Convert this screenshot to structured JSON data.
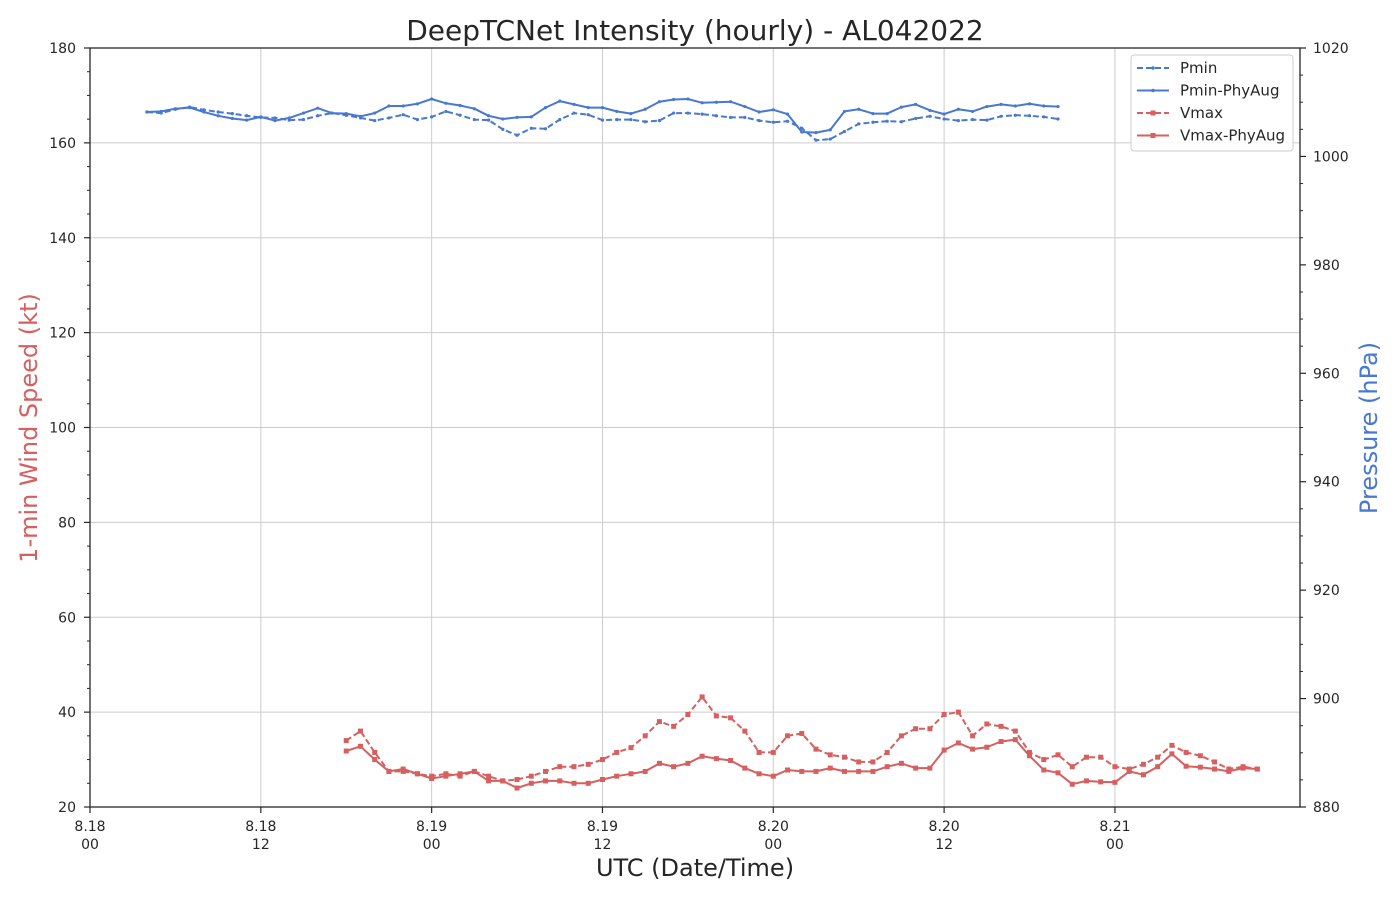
{
  "chart_data": {
    "type": "line",
    "title": "DeepTCNet Intensity (hourly) - AL042022",
    "xlabel": "UTC (Date/Time)",
    "ylabel_left": "1-min Wind Speed (kt)",
    "ylabel_right": "Pressure (hPa)",
    "x_unit": "hours since first tick (8.18 00 UTC)",
    "xlim": [
      0,
      85
    ],
    "ylim_left": [
      20,
      180
    ],
    "ylim_right": [
      880,
      1020
    ],
    "yticks_left": [
      20,
      40,
      60,
      80,
      100,
      120,
      140,
      160,
      180
    ],
    "yticks_right": [
      880,
      900,
      920,
      940,
      960,
      980,
      1000,
      1020
    ],
    "xticks": [
      {
        "hour": 0,
        "date": "8.18",
        "time": "00"
      },
      {
        "hour": 12,
        "date": "8.18",
        "time": "12"
      },
      {
        "hour": 24,
        "date": "8.19",
        "time": "00"
      },
      {
        "hour": 36,
        "date": "8.19",
        "time": "12"
      },
      {
        "hour": 48,
        "date": "8.20",
        "time": "00"
      },
      {
        "hour": 60,
        "date": "8.20",
        "time": "12"
      },
      {
        "hour": 72,
        "date": "8.21",
        "time": "00"
      }
    ],
    "grid": true,
    "legend_position": "top-right",
    "colors": {
      "vmax": "#d65f5f",
      "pmin": "#4878d0"
    },
    "series": [
      {
        "name": "Pmin",
        "axis": "right",
        "style": "dashed",
        "color": "#4878d0",
        "x_start": 4,
        "values": [
          1008.2,
          1008.0,
          1008.7,
          1009.1,
          1008.6,
          1008.2,
          1007.9,
          1007.5,
          1007.2,
          1007.1,
          1006.7,
          1006.8,
          1007.5,
          1008.0,
          1007.6,
          1007.1,
          1006.6,
          1007.1,
          1007.7,
          1006.8,
          1007.3,
          1008.3,
          1007.6,
          1006.8,
          1006.7,
          1005.0,
          1003.9,
          1005.2,
          1005.1,
          1006.8,
          1008.0,
          1007.7,
          1006.7,
          1006.8,
          1006.8,
          1006.4,
          1006.6,
          1008.0,
          1008.0,
          1007.8,
          1007.5,
          1007.2,
          1007.2,
          1006.6,
          1006.3,
          1006.5,
          1005.2,
          1003.0,
          1003.2,
          1004.6,
          1006.0,
          1006.3,
          1006.5,
          1006.4,
          1007.0,
          1007.4,
          1006.9,
          1006.6,
          1006.8,
          1006.7,
          1007.4,
          1007.6,
          1007.5,
          1007.3,
          1006.9
        ]
      },
      {
        "name": "Pmin-PhyAug",
        "axis": "right",
        "style": "solid",
        "color": "#4878d0",
        "x_start": 4,
        "values": [
          1008.2,
          1008.3,
          1008.8,
          1009.0,
          1008.2,
          1007.5,
          1007.0,
          1006.7,
          1007.3,
          1006.6,
          1007.1,
          1008.0,
          1008.9,
          1008.0,
          1007.9,
          1007.4,
          1008.0,
          1009.3,
          1009.3,
          1009.7,
          1010.6,
          1009.8,
          1009.4,
          1008.8,
          1007.5,
          1006.9,
          1007.2,
          1007.3,
          1009.0,
          1010.2,
          1009.6,
          1009.0,
          1009.0,
          1008.3,
          1007.9,
          1008.7,
          1010.1,
          1010.5,
          1010.6,
          1009.9,
          1010.0,
          1010.1,
          1009.2,
          1008.2,
          1008.6,
          1007.8,
          1004.5,
          1004.4,
          1004.9,
          1008.3,
          1008.7,
          1007.9,
          1007.9,
          1009.1,
          1009.6,
          1008.5,
          1007.8,
          1008.7,
          1008.3,
          1009.2,
          1009.6,
          1009.3,
          1009.7,
          1009.3,
          1009.2
        ]
      },
      {
        "name": "Vmax",
        "axis": "left",
        "style": "dashed",
        "color": "#d65f5f",
        "x_start": 18,
        "values": [
          34,
          36,
          31.5,
          27.5,
          27.5,
          27,
          26.5,
          27,
          26.5,
          27.5,
          26.5,
          25.5,
          25.8,
          26.5,
          27.5,
          28.5,
          28.5,
          29,
          30,
          31.5,
          32.5,
          35,
          38,
          37,
          39.5,
          43.2,
          39.2,
          38.8,
          36,
          31.5,
          31.5,
          35,
          35.5,
          32.2,
          31,
          30.5,
          29.5,
          29.5,
          31.5,
          35,
          36.5,
          36.5,
          39.5,
          40,
          35,
          37.5,
          37,
          36,
          31.5,
          30,
          31,
          28.5,
          30.5,
          30.5,
          28.5,
          28,
          29,
          30.5,
          33,
          31.5,
          30.8,
          29.5,
          28,
          28.5,
          28
        ]
      },
      {
        "name": "Vmax-PhyAug",
        "axis": "left",
        "style": "solid",
        "color": "#d65f5f",
        "x_start": 18,
        "values": [
          31.8,
          32.8,
          30,
          27.5,
          28,
          27,
          26,
          26.5,
          27,
          27.5,
          25.5,
          25.5,
          24,
          25,
          25.5,
          25.5,
          25,
          25,
          25.8,
          26.5,
          27,
          27.5,
          29.2,
          28.5,
          29.2,
          30.7,
          30.2,
          29.8,
          28.2,
          27,
          26.5,
          27.8,
          27.5,
          27.5,
          28.2,
          27.5,
          27.5,
          27.5,
          28.5,
          29.2,
          28.2,
          28.2,
          32,
          33.5,
          32.2,
          32.6,
          33.8,
          34.2,
          30.8,
          27.8,
          27.2,
          24.8,
          25.5,
          25.3,
          25.2,
          27.5,
          26.8,
          28.5,
          31.2,
          28.6,
          28.4,
          28,
          27.5,
          28.2,
          28
        ]
      }
    ]
  }
}
